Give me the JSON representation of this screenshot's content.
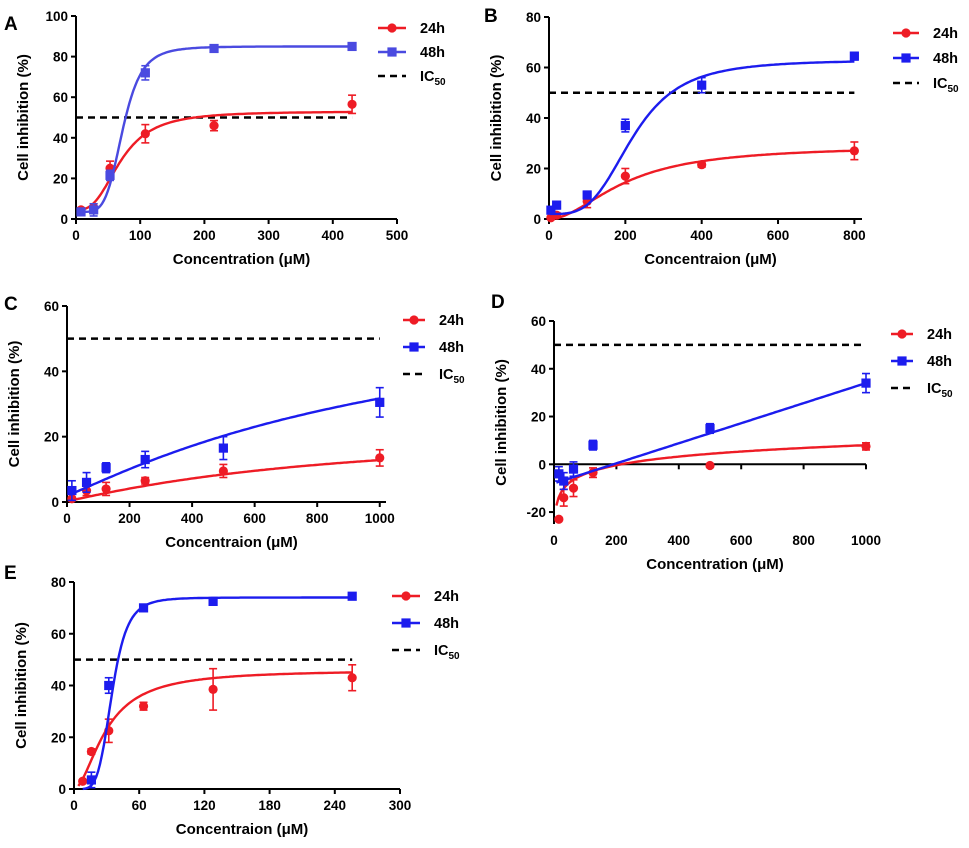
{
  "colors": {
    "red": "#ee1c25",
    "blue": "#1c1cee",
    "blue_a": "#4a4ae0",
    "black": "#000000"
  },
  "legend": {
    "h24": "24h",
    "h48": "48h",
    "ic_main": "IC",
    "ic_sub": "50"
  },
  "chart_data": [
    {
      "panel": "A",
      "type": "scatter",
      "xlabel": "Concentration (μM)",
      "ylabel": "Cell inhibition (%)",
      "xlim": [
        0,
        500
      ],
      "ylim": [
        0,
        100
      ],
      "xticks": [
        "0",
        "100",
        "200",
        "300",
        "400",
        "500"
      ],
      "yticks": [
        "0",
        "20",
        "40",
        "60",
        "80",
        "100"
      ],
      "ic50": 50,
      "ic50_range": [
        0,
        430
      ],
      "series": [
        {
          "name": "24h",
          "marker": "circle",
          "x": [
            7.8,
            27.5,
            53,
            108,
            215,
            430
          ],
          "y": [
            4.5,
            5.5,
            25,
            42,
            46,
            56.5
          ],
          "err": [
            1,
            2,
            3.5,
            4.5,
            2.5,
            4.5
          ],
          "fit": {
            "kind": "sigmoid",
            "bottom": 4.5,
            "top": 53,
            "ec50": 70,
            "hill": 2.8
          }
        },
        {
          "name": "48h",
          "marker": "square",
          "x": [
            7.8,
            27.5,
            53,
            108,
            215,
            430
          ],
          "y": [
            3.5,
            4.5,
            21.5,
            72,
            84,
            85
          ],
          "err": [
            1,
            3,
            2.5,
            3.5,
            1.2,
            1
          ],
          "fit": {
            "kind": "sigmoid",
            "bottom": 3.5,
            "top": 85,
            "ec50": 73,
            "hill": 5
          }
        }
      ]
    },
    {
      "panel": "B",
      "type": "scatter",
      "xlabel": "Concentraion (μM)",
      "ylabel": "Cell inhibition (%)",
      "xlim": [
        0,
        820
      ],
      "ylim": [
        0,
        80
      ],
      "xticks": [
        "0",
        "200",
        "400",
        "600",
        "800"
      ],
      "yticks": [
        "0",
        "20",
        "40",
        "60",
        "80"
      ],
      "ic50": 50,
      "ic50_range": [
        0,
        800
      ],
      "series": [
        {
          "name": "24h",
          "marker": "circle",
          "x": [
            5,
            20,
            100,
            200,
            400,
            800
          ],
          "y": [
            0.5,
            1.5,
            7,
            17,
            21.5,
            27
          ],
          "err": [
            0.5,
            1,
            2.5,
            3,
            1,
            3.5
          ],
          "fit": {
            "kind": "sigmoid",
            "bottom": 0,
            "top": 29,
            "ec50": 200,
            "hill": 1.9
          }
        },
        {
          "name": "48h",
          "marker": "square",
          "x": [
            5,
            20,
            100,
            200,
            400,
            800
          ],
          "y": [
            3.5,
            5.5,
            9.5,
            37,
            53,
            64.5
          ],
          "err": [
            0.8,
            1.5,
            1.5,
            2.5,
            3,
            1.5
          ],
          "fit": {
            "kind": "sigmoid",
            "bottom": 2,
            "top": 63,
            "ec50": 220,
            "hill": 3.5
          }
        }
      ]
    },
    {
      "panel": "C",
      "type": "scatter",
      "xlabel": "Concentraion (μM)",
      "ylabel": "Cell inhibition (%)",
      "xlim": [
        0,
        1020
      ],
      "ylim": [
        0,
        60
      ],
      "xticks": [
        "0",
        "200",
        "400",
        "600",
        "800",
        "1000"
      ],
      "yticks": [
        "0",
        "20",
        "40",
        "60"
      ],
      "ic50": 50,
      "ic50_range": [
        0,
        1000
      ],
      "series": [
        {
          "name": "24h",
          "marker": "circle",
          "x": [
            15.6,
            62.5,
            125,
            250,
            500,
            1000
          ],
          "y": [
            1,
            3.5,
            4,
            6.5,
            9.5,
            13.5
          ],
          "err": [
            0.5,
            1.5,
            2,
            1,
            2,
            2.5
          ],
          "fit": {
            "kind": "sigmoid",
            "bottom": 0.3,
            "top": 24,
            "ec50": 900,
            "hill": 1.1
          }
        },
        {
          "name": "48h",
          "marker": "square",
          "x": [
            15.6,
            62.5,
            125,
            250,
            500,
            1000
          ],
          "y": [
            3.5,
            6,
            10.5,
            13,
            16.5,
            30.5
          ],
          "err": [
            3,
            3,
            1.5,
            2.5,
            3.5,
            4.5
          ],
          "fit": {
            "kind": "sigmoid",
            "bottom": 2,
            "top": 68,
            "ec50": 1200,
            "hill": 1.1
          }
        }
      ]
    },
    {
      "panel": "D",
      "type": "scatter",
      "xlabel": "Concentration (μM)",
      "ylabel": "Cell inhibition (%)",
      "xlim": [
        0,
        1000
      ],
      "ylim": [
        -25,
        60
      ],
      "xticks": [
        "0",
        "200",
        "400",
        "600",
        "800",
        "1000"
      ],
      "yticks": [
        "-20",
        "0",
        "20",
        "40",
        "60"
      ],
      "ic50": 50,
      "ic50_range": [
        0,
        1000
      ],
      "series": [
        {
          "name": "24h",
          "marker": "circle",
          "x": [
            15.6,
            31.25,
            62.5,
            125,
            500,
            1000
          ],
          "y": [
            -23,
            -14,
            -10,
            -3.5,
            -0.5,
            7.5
          ],
          "err": [
            0.5,
            3.5,
            3.5,
            2,
            0.5,
            1.5
          ],
          "fit": {
            "kind": "log",
            "a": -28,
            "b": 12,
            "floor": -21.4
          }
        },
        {
          "name": "48h",
          "marker": "square",
          "x": [
            15.6,
            31.25,
            62.5,
            125,
            500,
            1000
          ],
          "y": [
            -4,
            -7,
            -2,
            8,
            15,
            34
          ],
          "err": [
            3,
            3.5,
            3,
            2,
            2,
            4
          ],
          "fit": {
            "kind": "linear",
            "slope": 0.042,
            "intercept": -8
          }
        }
      ]
    },
    {
      "panel": "E",
      "type": "scatter",
      "xlabel": "Concentraion (μM)",
      "ylabel": "Cell inhibition (%)",
      "xlim": [
        0,
        300
      ],
      "ylim": [
        0,
        80
      ],
      "xticks": [
        "0",
        "60",
        "120",
        "180",
        "240",
        "300"
      ],
      "yticks": [
        "0",
        "20",
        "40",
        "60",
        "80"
      ],
      "ic50": 50,
      "ic50_range": [
        0,
        256
      ],
      "series": [
        {
          "name": "24h",
          "marker": "circle",
          "x": [
            8,
            16,
            32,
            64,
            128,
            256
          ],
          "y": [
            3,
            14.5,
            22.5,
            32,
            38.5,
            43
          ],
          "err": [
            0.5,
            1,
            4.5,
            1.5,
            8,
            5
          ],
          "fit": {
            "kind": "sigmoid",
            "bottom": 0,
            "top": 46,
            "ec50": 30,
            "hill": 1.8
          }
        },
        {
          "name": "48h",
          "marker": "square",
          "x": [
            16,
            32,
            64,
            128,
            256
          ],
          "y": [
            3.5,
            40,
            70,
            72.5,
            74.5
          ],
          "err": [
            3,
            3,
            1,
            1,
            1
          ],
          "fit": {
            "kind": "sigmoid",
            "bottom": 0,
            "top": 74,
            "ec50": 35,
            "hill": 5
          }
        }
      ]
    }
  ]
}
